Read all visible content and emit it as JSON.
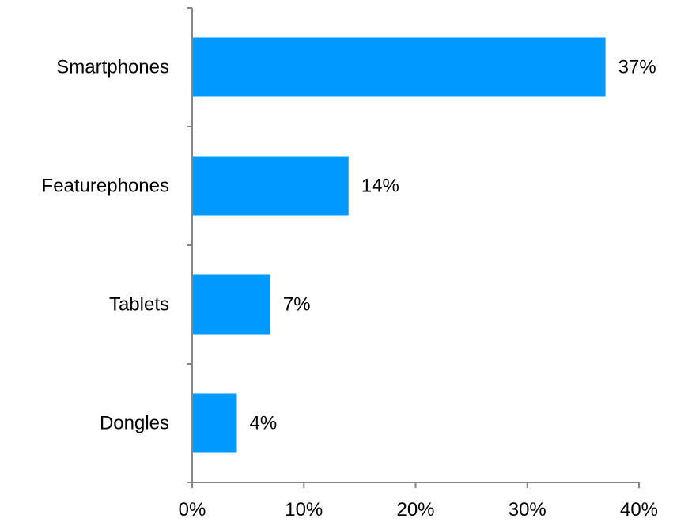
{
  "chart_data": {
    "type": "bar",
    "orientation": "horizontal",
    "categories": [
      "Smartphones",
      "Featurephones",
      "Tablets",
      "Dongles"
    ],
    "values": [
      37,
      14,
      7,
      4
    ],
    "value_labels": [
      "37%",
      "14%",
      "7%",
      "4%"
    ],
    "xlim": [
      0,
      40
    ],
    "x_ticks": [
      0,
      10,
      20,
      30,
      40
    ],
    "x_tick_labels": [
      "0%",
      "10%",
      "20%",
      "30%",
      "40%"
    ],
    "title": "",
    "xlabel": "",
    "ylabel": "",
    "grid": false,
    "legend": "none",
    "bar_color": "#0099FF",
    "axis_color": "#868686"
  }
}
